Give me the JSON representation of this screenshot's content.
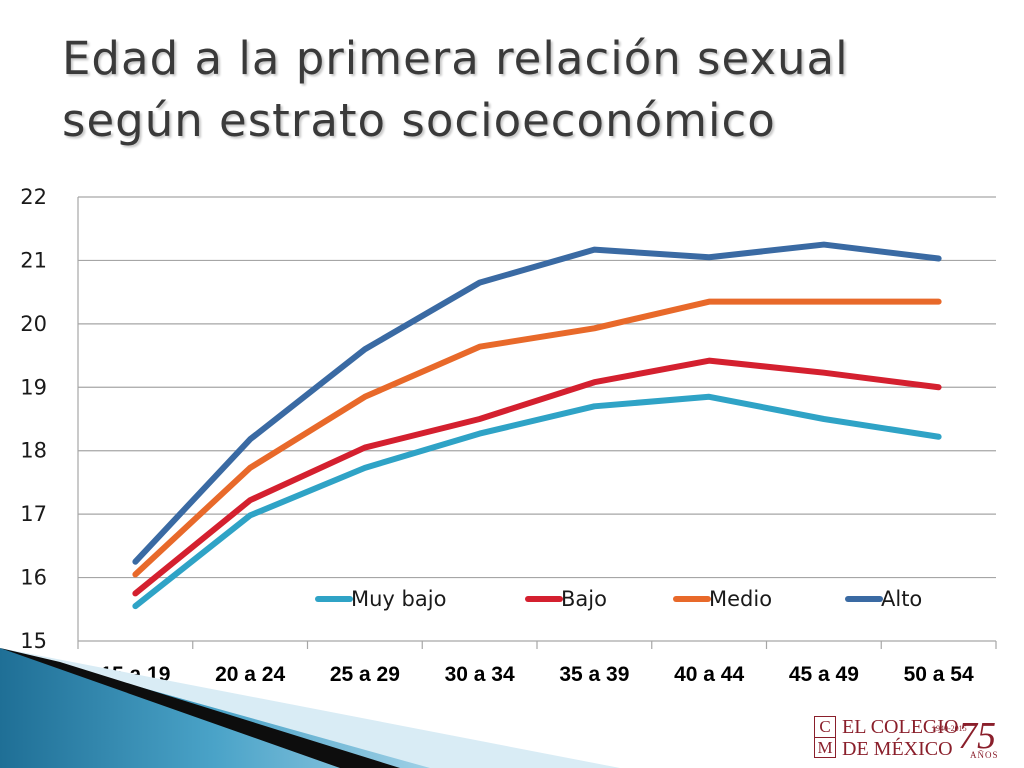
{
  "slide": {
    "title_line1": "Edad a la primera relación sexual",
    "title_line2": "según estrato socioeconómico"
  },
  "chart_data": {
    "type": "line",
    "title": "",
    "xlabel": "",
    "ylabel": "",
    "categories": [
      "15 a 19",
      "20 a 24",
      "25 a 29",
      "30 a 34",
      "35 a 39",
      "40 a 44",
      "45 a 49",
      "50 a 54"
    ],
    "ylim": [
      15,
      22
    ],
    "yticks": [
      "15",
      "16",
      "17",
      "18",
      "19",
      "20",
      "21",
      "22"
    ],
    "grid": true,
    "legend_position": "inside-bottom",
    "series": [
      {
        "name": "Muy bajo",
        "color": "#2fa3c6",
        "values": [
          15.55,
          16.98,
          17.73,
          18.27,
          18.7,
          18.85,
          18.5,
          18.22
        ]
      },
      {
        "name": "Bajo",
        "color": "#d4202f",
        "values": [
          15.75,
          17.22,
          18.05,
          18.5,
          19.08,
          19.42,
          19.23,
          19.0
        ]
      },
      {
        "name": "Medio",
        "color": "#e8692a",
        "values": [
          16.05,
          17.73,
          18.85,
          19.64,
          19.93,
          20.35,
          20.35,
          20.35
        ]
      },
      {
        "name": "Alto",
        "color": "#3a6aa3",
        "values": [
          16.25,
          18.18,
          19.6,
          20.65,
          21.17,
          21.05,
          21.25,
          21.03
        ]
      }
    ]
  },
  "logo": {
    "mark_top": "C",
    "mark_bottom": "M",
    "line1": "EL COLEGIO",
    "line2": "DE MÉXICO",
    "years": "75",
    "range": "1940-2015",
    "anos": "AÑOS"
  }
}
